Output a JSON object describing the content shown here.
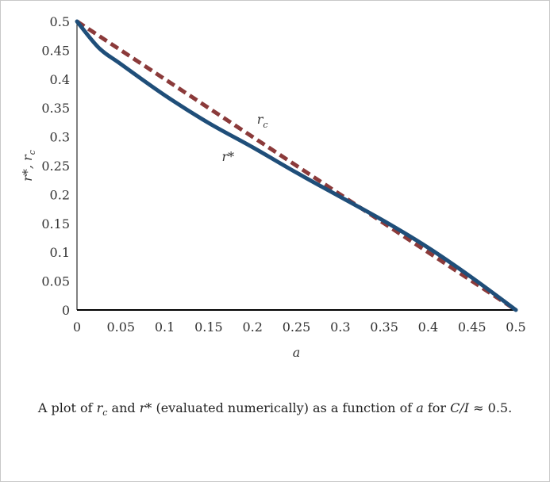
{
  "chart_data": {
    "type": "line",
    "xlabel": "a",
    "ylabel": "r*, r",
    "ylabel_sub": "c",
    "xlim": [
      0,
      0.5
    ],
    "ylim": [
      0,
      0.5
    ],
    "x_ticks": [
      "0",
      "0.05",
      "0.1",
      "0.15",
      "0.2",
      "0.25",
      "0.3",
      "0.35",
      "0.4",
      "0.45",
      "0.5"
    ],
    "y_ticks": [
      "0",
      "0.05",
      "0.1",
      "0.15",
      "0.2",
      "0.25",
      "0.3",
      "0.35",
      "0.4",
      "0.45",
      "0.5"
    ],
    "grid": false,
    "legend": "none",
    "series": [
      {
        "name": "r*",
        "color": "#1f4e79",
        "style": "solid",
        "x": [
          0,
          0.025,
          0.05,
          0.1,
          0.15,
          0.2,
          0.25,
          0.3,
          0.35,
          0.4,
          0.45,
          0.5
        ],
        "y": [
          0.5,
          0.454,
          0.426,
          0.372,
          0.324,
          0.282,
          0.238,
          0.196,
          0.154,
          0.108,
          0.056,
          0.0
        ]
      },
      {
        "name": "r",
        "name_sub": "c",
        "color": "#8b3a3a",
        "style": "dashed",
        "x": [
          0,
          0.5
        ],
        "y": [
          0.5,
          0.0
        ]
      }
    ],
    "annotations": [
      {
        "text": "r",
        "sub": "c",
        "x": 0.205,
        "y": 0.323
      },
      {
        "text": "r*",
        "x": 0.165,
        "y": 0.258
      }
    ]
  },
  "caption": {
    "p1": "A plot of ",
    "v1": "r",
    "v1_sub": "c",
    "p2": " and ",
    "v2": "r*",
    "p3": " (evaluated numerically) as a function of ",
    "v3": "a",
    "p4": " for ",
    "v4": "C/I",
    "p5": " ≈ 0.5."
  }
}
